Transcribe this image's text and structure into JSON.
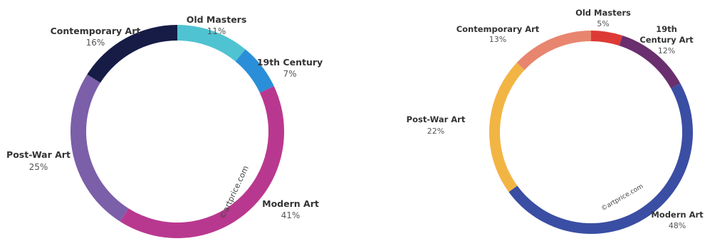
{
  "chart_data": [
    {
      "type": "pie",
      "style": "donut",
      "categories": [
        "Old Masters",
        "19th Century",
        "Modern Art",
        "Post-War Art",
        "Contemporary Art"
      ],
      "values": [
        11,
        7,
        41,
        25,
        16
      ],
      "value_labels": [
        "11%",
        "7%",
        "41%",
        "25%",
        "16%"
      ],
      "colors": [
        "#4fc3d2",
        "#2a8fd8",
        "#b9388f",
        "#7b5fa9",
        "#161c45"
      ],
      "watermark": "©artprice.com"
    },
    {
      "type": "pie",
      "style": "donut",
      "categories": [
        "Old Masters",
        "19th Century Art",
        "Modern Art",
        "Post-War Art",
        "Contemporary Art"
      ],
      "values": [
        5,
        12,
        48,
        22,
        13
      ],
      "value_labels": [
        "5%",
        "12%",
        "48%",
        "22%",
        "13%"
      ],
      "colors": [
        "#dd3a35",
        "#6a2f6e",
        "#3a4ea3",
        "#f2b544",
        "#e8856f"
      ],
      "watermark": "©artprice.com"
    }
  ]
}
